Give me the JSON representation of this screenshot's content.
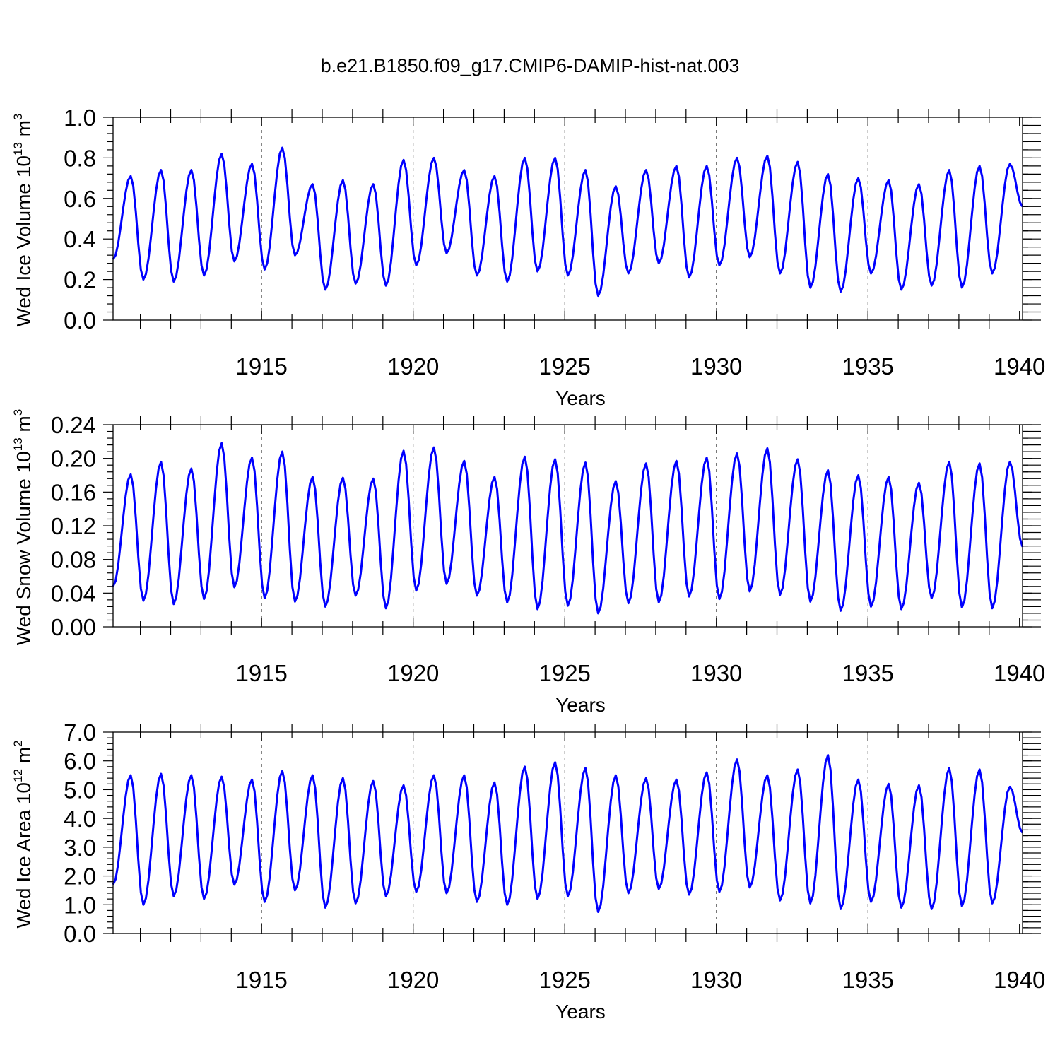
{
  "title": "b.e21.B1850.f09_g17.CMIP6-DAMIP-hist-nat.003",
  "chart_data": [
    {
      "type": "line",
      "name": "ice-volume",
      "title": "b.e21.B1850.f09_g17.CMIP6-DAMIP-hist-nat.003",
      "xlabel": "Years",
      "ylabel": "Wed Ice Volume 10",
      "ylabel_sup": "13",
      "ylabel_unit": " m",
      "ylabel_unit_sup": "3",
      "xlim": [
        1910.1,
        1940.1
      ],
      "ylim": [
        0.0,
        1.0
      ],
      "xticks": [
        1915,
        1920,
        1925,
        1930,
        1935,
        1940
      ],
      "yticks": [
        0.0,
        0.2,
        0.4,
        0.6,
        0.8,
        1.0
      ],
      "ytick_labels": [
        "0.0",
        "0.2",
        "0.4",
        "0.6",
        "0.8",
        "1.0"
      ],
      "vlines": [
        1915,
        1920,
        1925,
        1930,
        1935
      ],
      "peaks": [
        0.71,
        0.74,
        0.74,
        0.82,
        0.77,
        0.85,
        0.67,
        0.69,
        0.67,
        0.79,
        0.8,
        0.74,
        0.71,
        0.8,
        0.8,
        0.74,
        0.66,
        0.74,
        0.76,
        0.76,
        0.8,
        0.81,
        0.78,
        0.72,
        0.7,
        0.69,
        0.67,
        0.74,
        0.76,
        0.77
      ],
      "troughs": [
        0.3,
        0.2,
        0.19,
        0.22,
        0.29,
        0.25,
        0.32,
        0.15,
        0.18,
        0.17,
        0.27,
        0.33,
        0.22,
        0.19,
        0.24,
        0.22,
        0.12,
        0.23,
        0.28,
        0.21,
        0.27,
        0.31,
        0.23,
        0.16,
        0.14,
        0.23,
        0.15,
        0.17,
        0.16,
        0.23,
        0.56
      ],
      "color": "#0000ff"
    },
    {
      "type": "line",
      "name": "snow-volume",
      "xlabel": "Years",
      "ylabel": "Wed Snow Volume 10",
      "ylabel_sup": "13",
      "ylabel_unit": " m",
      "ylabel_unit_sup": "3",
      "xlim": [
        1910.1,
        1940.1
      ],
      "ylim": [
        0.0,
        0.24
      ],
      "xticks": [
        1915,
        1920,
        1925,
        1930,
        1935,
        1940
      ],
      "yticks": [
        0.0,
        0.04,
        0.08,
        0.12,
        0.16,
        0.2,
        0.24
      ],
      "ytick_labels": [
        "0.00",
        "0.04",
        "0.08",
        "0.12",
        "0.16",
        "0.20",
        "0.24"
      ],
      "vlines": [
        1915,
        1920,
        1925,
        1930,
        1935
      ],
      "peaks": [
        0.181,
        0.196,
        0.188,
        0.218,
        0.201,
        0.208,
        0.178,
        0.177,
        0.176,
        0.209,
        0.213,
        0.197,
        0.178,
        0.202,
        0.199,
        0.195,
        0.173,
        0.194,
        0.197,
        0.201,
        0.206,
        0.212,
        0.199,
        0.186,
        0.18,
        0.178,
        0.171,
        0.196,
        0.194,
        0.196
      ],
      "troughs": [
        0.048,
        0.031,
        0.027,
        0.033,
        0.047,
        0.034,
        0.03,
        0.024,
        0.037,
        0.022,
        0.043,
        0.051,
        0.037,
        0.029,
        0.021,
        0.025,
        0.016,
        0.028,
        0.029,
        0.036,
        0.033,
        0.042,
        0.038,
        0.03,
        0.019,
        0.024,
        0.021,
        0.034,
        0.023,
        0.022,
        0.095
      ],
      "color": "#0000ff"
    },
    {
      "type": "line",
      "name": "ice-area",
      "xlabel": "Years",
      "ylabel": "Wed Ice Area 10",
      "ylabel_sup": "12",
      "ylabel_unit": " m",
      "ylabel_unit_sup": "2",
      "xlim": [
        1910.1,
        1940.1
      ],
      "ylim": [
        0.0,
        7.0
      ],
      "xticks": [
        1915,
        1920,
        1925,
        1930,
        1935,
        1940
      ],
      "yticks": [
        0.0,
        1.0,
        2.0,
        3.0,
        4.0,
        5.0,
        6.0,
        7.0
      ],
      "ytick_labels": [
        "0.0",
        "1.0",
        "2.0",
        "3.0",
        "4.0",
        "5.0",
        "6.0",
        "7.0"
      ],
      "vlines": [
        1915,
        1920,
        1925,
        1930,
        1935
      ],
      "peaks": [
        5.5,
        5.55,
        5.5,
        5.45,
        5.35,
        5.65,
        5.5,
        5.4,
        5.3,
        5.15,
        5.5,
        5.5,
        5.25,
        5.8,
        5.95,
        5.75,
        5.5,
        5.4,
        5.35,
        5.6,
        6.05,
        5.5,
        5.7,
        6.2,
        5.35,
        5.2,
        5.15,
        5.75,
        5.7,
        5.1
      ],
      "troughs": [
        1.7,
        1.0,
        1.3,
        1.2,
        1.7,
        1.1,
        1.5,
        0.9,
        1.05,
        1.3,
        1.45,
        1.4,
        1.1,
        1.0,
        1.2,
        1.3,
        0.75,
        1.4,
        1.55,
        1.35,
        1.45,
        1.6,
        1.15,
        1.05,
        0.85,
        1.1,
        0.9,
        0.85,
        0.95,
        1.05,
        3.5
      ],
      "color": "#0000ff"
    }
  ]
}
